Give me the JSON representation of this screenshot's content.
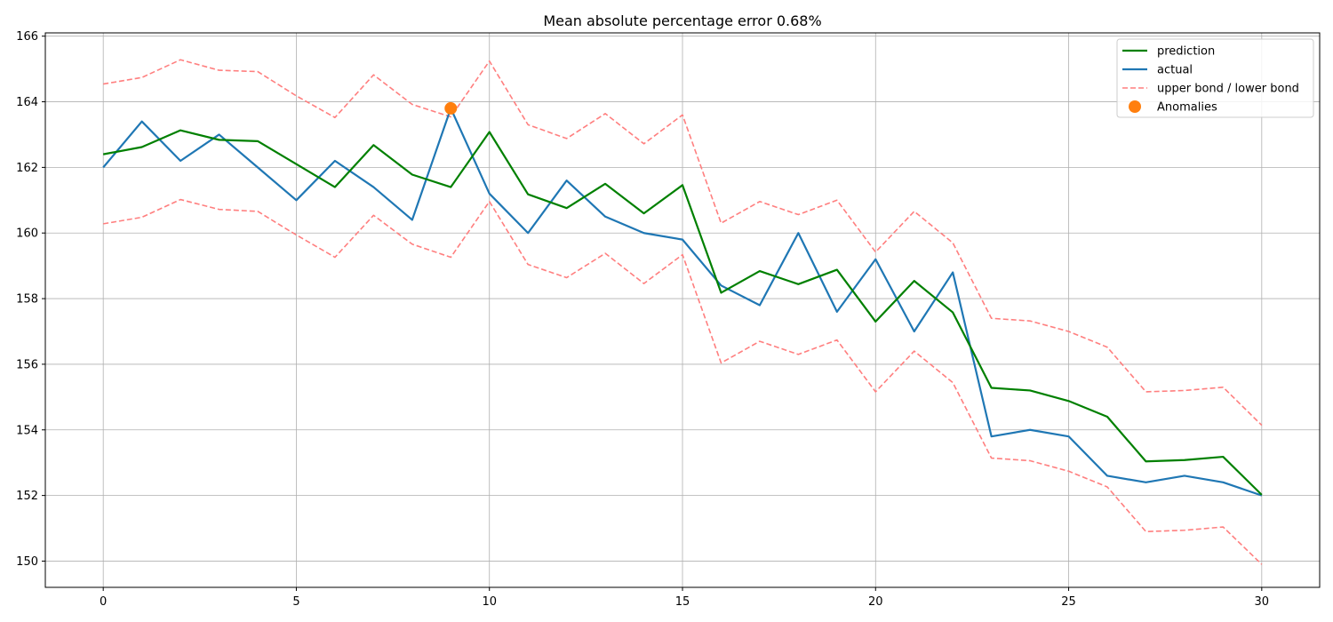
{
  "chart_data": {
    "type": "line",
    "title": "Mean absolute percentage error 0.68%",
    "xlabel": "",
    "ylabel": "",
    "xlim": [
      -1.5,
      31.5
    ],
    "ylim": [
      149.2,
      166.1
    ],
    "xticks": [
      0,
      5,
      10,
      15,
      20,
      25,
      30
    ],
    "yticks": [
      150,
      152,
      154,
      156,
      158,
      160,
      162,
      164,
      166
    ],
    "grid": true,
    "legend_position": "top-right",
    "x": [
      0,
      1,
      2,
      3,
      4,
      5,
      6,
      7,
      8,
      9,
      10,
      11,
      12,
      13,
      14,
      15,
      16,
      17,
      18,
      19,
      20,
      21,
      22,
      23,
      24,
      25,
      26,
      27,
      28,
      29,
      30
    ],
    "series": [
      {
        "name": "prediction",
        "color": "#008000",
        "style": "solid",
        "values": [
          162.4,
          162.62,
          163.13,
          162.84,
          162.8,
          162.1,
          161.4,
          162.68,
          161.78,
          161.4,
          163.08,
          161.18,
          160.76,
          161.5,
          160.6,
          161.46,
          158.18,
          158.84,
          158.44,
          158.88,
          157.3,
          158.54,
          157.58,
          155.28,
          155.2,
          154.88,
          154.4,
          153.04,
          153.08,
          153.18,
          152.02
        ]
      },
      {
        "name": "actual",
        "color": "#1f77b4",
        "style": "solid",
        "values": [
          162.0,
          163.4,
          162.2,
          163.0,
          162.0,
          161.0,
          162.2,
          161.4,
          160.4,
          163.8,
          161.2,
          160.0,
          161.6,
          160.5,
          160.0,
          159.8,
          158.4,
          157.8,
          160.0,
          157.6,
          159.2,
          157.0,
          158.8,
          153.8,
          154.0,
          153.8,
          152.6,
          152.4,
          152.6,
          152.4,
          152.0
        ]
      },
      {
        "name": "upper bond / lower bond",
        "color": "#ff7f7f",
        "style": "dashed",
        "values": [
          164.54,
          164.74,
          165.28,
          164.96,
          164.92,
          164.18,
          163.52,
          164.82,
          163.92,
          163.54,
          165.24,
          163.3,
          162.88,
          163.64,
          162.72,
          163.6,
          160.3,
          160.96,
          160.56,
          161.0,
          159.42,
          160.66,
          159.7,
          157.4,
          157.32,
          157.0,
          156.52,
          155.16,
          155.2,
          155.3,
          154.14
        ]
      },
      {
        "name": "",
        "color": "#ff7f7f",
        "style": "dashed",
        "values": [
          160.28,
          160.48,
          161.02,
          160.72,
          160.66,
          159.94,
          159.26,
          160.54,
          159.66,
          159.26,
          160.96,
          159.04,
          158.64,
          159.38,
          158.46,
          159.34,
          156.04,
          156.7,
          156.3,
          156.74,
          155.16,
          156.4,
          155.44,
          153.14,
          153.06,
          152.74,
          152.26,
          150.9,
          150.94,
          151.04,
          149.9
        ]
      }
    ],
    "anomalies": {
      "name": "Anomalies",
      "color": "#ff7f0e",
      "points": [
        {
          "x": 9,
          "y": 163.8
        }
      ]
    },
    "legend": [
      {
        "label": "prediction",
        "color": "#008000",
        "style": "solid"
      },
      {
        "label": "actual",
        "color": "#1f77b4",
        "style": "solid"
      },
      {
        "label": "upper bond / lower bond",
        "color": "#ff7f7f",
        "style": "dashed"
      },
      {
        "label": "Anomalies",
        "color": "#ff7f0e",
        "style": "marker"
      }
    ]
  }
}
